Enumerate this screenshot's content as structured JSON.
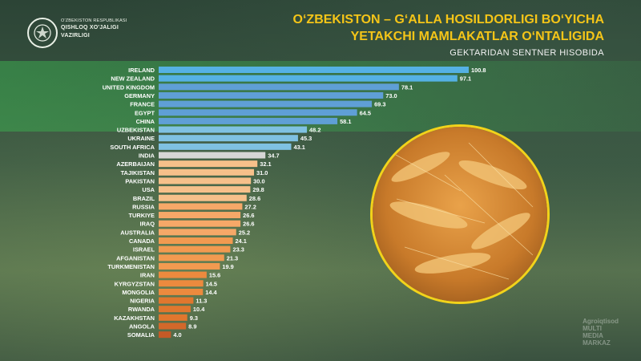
{
  "header": {
    "ministry_line1": "O'ZBEKISTON RESPUBLIKASI",
    "ministry_line2": "QISHLOQ XO'JALIGI",
    "ministry_line3": "VAZIRLIGI",
    "title_line1": "O‘ZBEKISTON – G‘ALLA HOSILDORLIGI BO‘YICHA",
    "title_line2": "YETAKCHI  MAMLAKATLAR O‘NTALIGIDA",
    "subtitle": "GEKTARIDAN SENTNER HISOBIDA"
  },
  "watermark": {
    "line1": "Agroiqtisod",
    "line2": "MULTI",
    "line3": "MEDIA",
    "line4": "MARKAZ"
  },
  "colors": {
    "title": "#f5c518",
    "highlight_band": "#3caa50",
    "circle_border": "#f2d31a"
  },
  "icons": {
    "logo": "state-emblem-icon",
    "photo": "wheat-ears-photo"
  },
  "chart_data": {
    "type": "bar",
    "orientation": "horizontal",
    "title": "O‘ZBEKISTON – G‘ALLA HOSILDORLIGI BO‘YICHA YETAKCHI  MAMLAKATLAR O‘NTALIGIDA",
    "subtitle": "GEKTARIDAN SENTNER HISOBIDA",
    "xlabel": "",
    "ylabel": "",
    "xlim": [
      0,
      100.8
    ],
    "grid": false,
    "categories": [
      "IRELAND",
      "NEW ZEALAND",
      "UNITED KINGDOM",
      "GERMANY",
      "FRANCE",
      "EGYPT",
      "CHINA",
      "UZBEKISTAN",
      "UKRAINE",
      "SOUTH AFRICA",
      "INDIA",
      "AZERBAIJAN",
      "TAJIKISTAN",
      "PAKISTAN",
      "USA",
      "BRAZIL",
      "RUSSIA",
      "TURKIYE",
      "IRAQ",
      "AUSTRALIA",
      "CANADA",
      "ISRAEL",
      "AFGANISTAN",
      "TURKMENISTAN",
      "IRAN",
      "KYRGYZSTAN",
      "MONGOLIA",
      "NIGERIA",
      "RWANDA",
      "KAZAKHSTAN",
      "ANGOLA",
      "SOMALIA"
    ],
    "values": [
      100.8,
      97.1,
      78.1,
      73.0,
      69.3,
      64.5,
      58.1,
      48.2,
      45.3,
      43.1,
      34.7,
      32.1,
      31.0,
      30.0,
      29.8,
      28.6,
      27.2,
      26.6,
      26.6,
      25.2,
      24.1,
      23.3,
      21.3,
      19.9,
      15.6,
      14.5,
      14.4,
      11.3,
      10.4,
      9.3,
      8.9,
      4.0
    ],
    "value_labels": [
      "100.8",
      "97.1",
      "78.1",
      "73.0",
      "69.3",
      "64.5",
      "58.1",
      "48.2",
      "45.3",
      "43.1",
      "34.7",
      "32.1",
      "31.0",
      "30.0",
      "29.8",
      "28.6",
      "27.2",
      "26.6",
      "26.6",
      "25.2",
      "24.1",
      "23.3",
      "21.3",
      "19.9",
      "15.6",
      "14.5",
      "14.4",
      "11.3",
      "10.4",
      "9.3",
      "8.9",
      "4.0"
    ],
    "bar_colors": [
      "#55b1e4",
      "#55b1e4",
      "#5f9fd6",
      "#5f9fd6",
      "#5f9fd6",
      "#5f9fd6",
      "#5f9fd6",
      "#7fc1e2",
      "#7fc1e2",
      "#7fc1e2",
      "#d6d6d6",
      "#f6c08a",
      "#f6c08a",
      "#f6c08a",
      "#f6c08a",
      "#f6c08a",
      "#f6a868",
      "#f6a868",
      "#f6a868",
      "#f6a868",
      "#f29a50",
      "#f29a50",
      "#f29a50",
      "#f29a50",
      "#ec8a3e",
      "#ec8a3e",
      "#ec8a3e",
      "#e0772e",
      "#e0772e",
      "#e0772e",
      "#d3682a",
      "#c55a26"
    ]
  }
}
